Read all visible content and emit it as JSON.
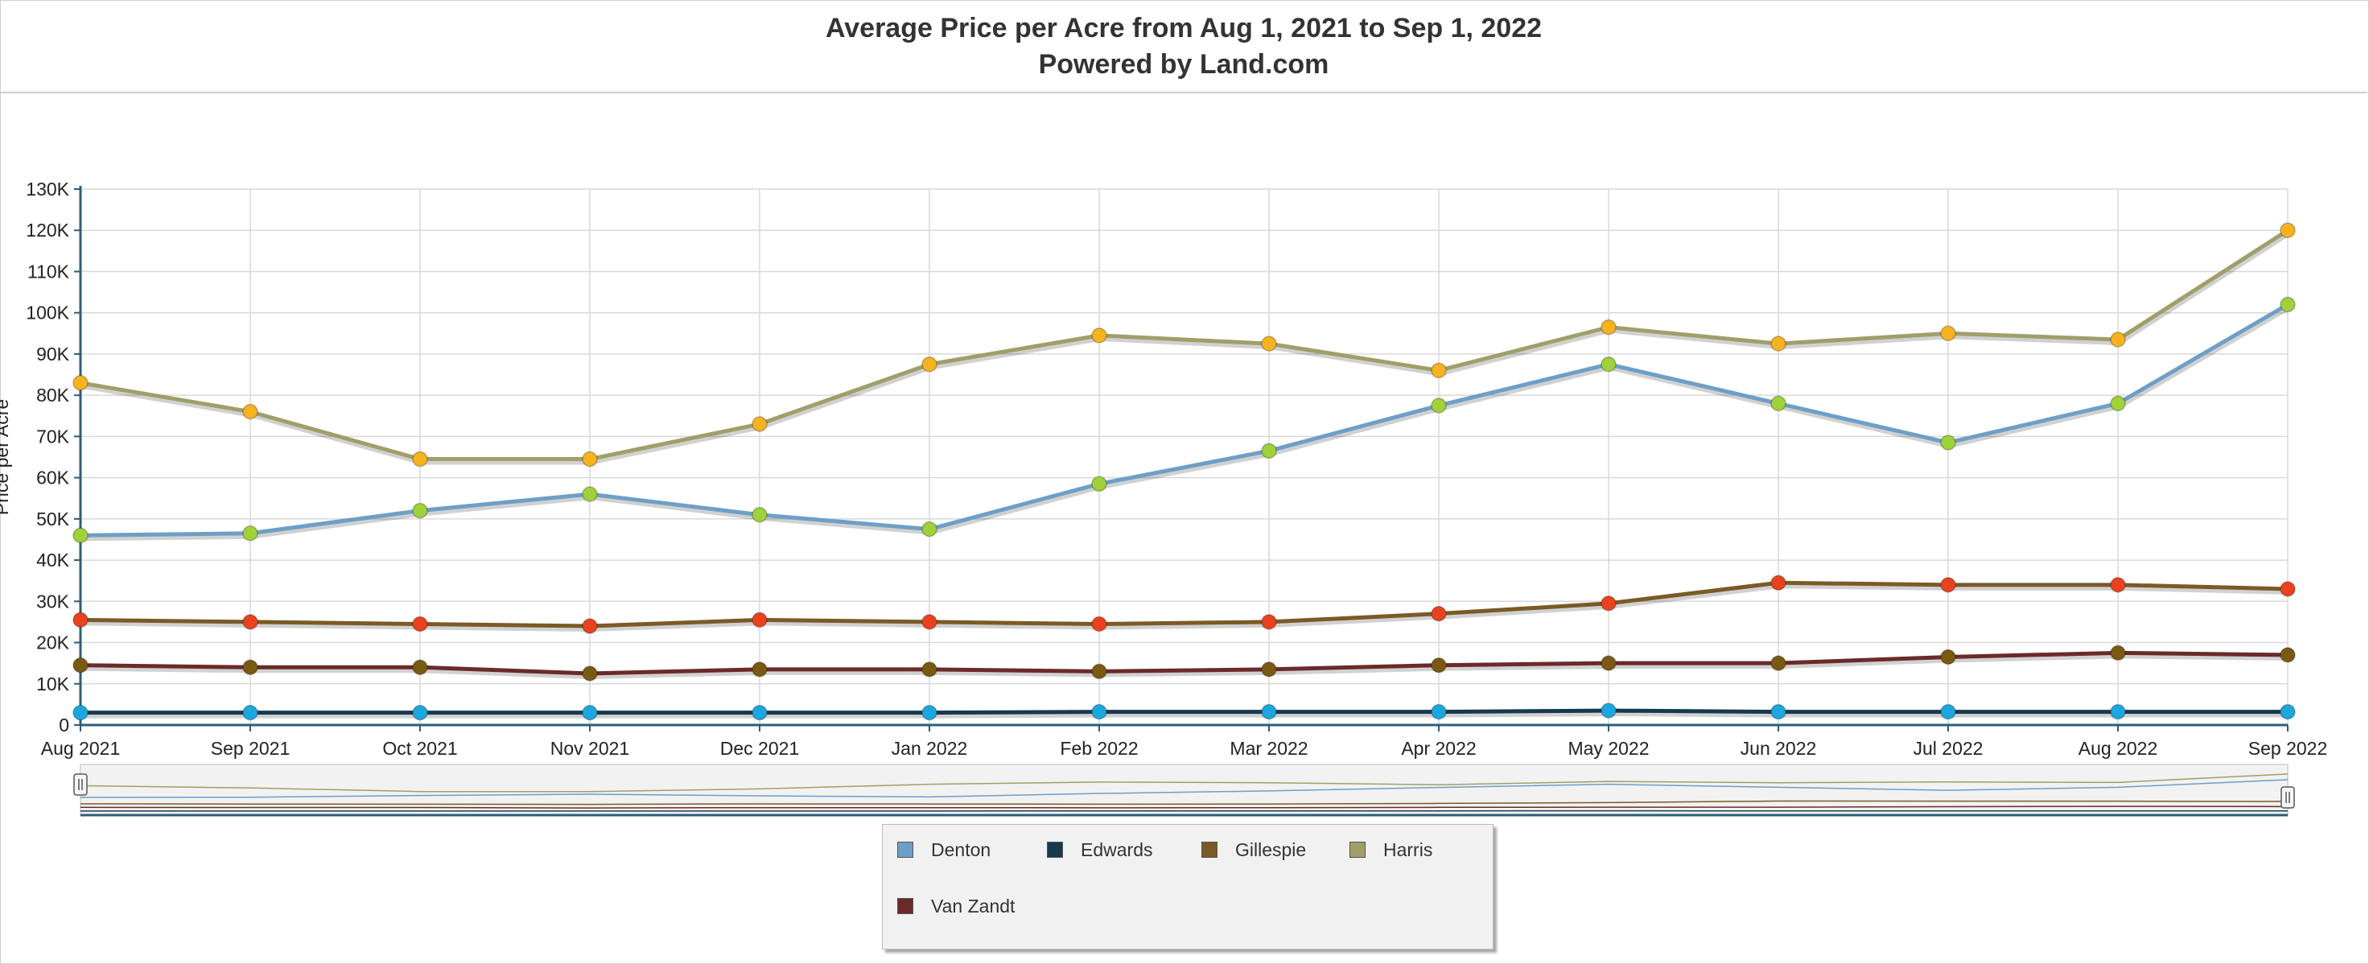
{
  "header": {
    "title_line1": "Average Price per Acre from Aug 1, 2021 to Sep 1, 2022",
    "title_line2": "Powered by Land.com"
  },
  "chart_data": {
    "type": "line",
    "title": "Average Price per Acre from Aug 1, 2021 to Sep 1, 2022",
    "subtitle": "Powered by Land.com",
    "ylabel": "Price per Acre",
    "xlabel": "",
    "ylim": [
      0,
      130000
    ],
    "y_ticks": [
      "0",
      "10K",
      "20K",
      "30K",
      "40K",
      "50K",
      "60K",
      "70K",
      "80K",
      "90K",
      "100K",
      "110K",
      "120K",
      "130K"
    ],
    "categories": [
      "Aug 2021",
      "Sep 2021",
      "Oct 2021",
      "Nov 2021",
      "Dec 2021",
      "Jan 2022",
      "Feb 2022",
      "Mar 2022",
      "Apr 2022",
      "May 2022",
      "Jun 2022",
      "Jul 2022",
      "Aug 2022",
      "Sep 2022"
    ],
    "grid": true,
    "legend_position": "bottom-center",
    "series": [
      {
        "name": "Denton",
        "color": "#6e9fc6",
        "marker_color": "#9ed13a",
        "values": [
          46000,
          46500,
          52000,
          56000,
          51000,
          47500,
          58500,
          66500,
          77500,
          87500,
          78000,
          68500,
          78000,
          102000
        ]
      },
      {
        "name": "Edwards",
        "color": "#17394f",
        "marker_color": "#1ba7dd",
        "values": [
          3000,
          3000,
          3000,
          3000,
          3000,
          3000,
          3200,
          3200,
          3200,
          3500,
          3200,
          3200,
          3200,
          3200
        ]
      },
      {
        "name": "Gillespie",
        "color": "#7a5a26",
        "marker_color": "#e8431e",
        "values": [
          25500,
          25000,
          24500,
          24000,
          25500,
          25000,
          24500,
          25000,
          27000,
          29500,
          34500,
          34000,
          34000,
          33000
        ]
      },
      {
        "name": "Harris",
        "color": "#a09f6a",
        "marker_color": "#f6b21f",
        "values": [
          83000,
          76000,
          64500,
          64500,
          73000,
          87500,
          94500,
          92500,
          86000,
          96500,
          92500,
          95000,
          93500,
          120000
        ]
      },
      {
        "name": "Van Zandt",
        "color": "#6b2a2a",
        "marker_color": "#7a5a12",
        "values": [
          14500,
          14000,
          14000,
          12500,
          13500,
          13500,
          13000,
          13500,
          14500,
          15000,
          15000,
          16500,
          17500,
          17000
        ]
      }
    ]
  }
}
